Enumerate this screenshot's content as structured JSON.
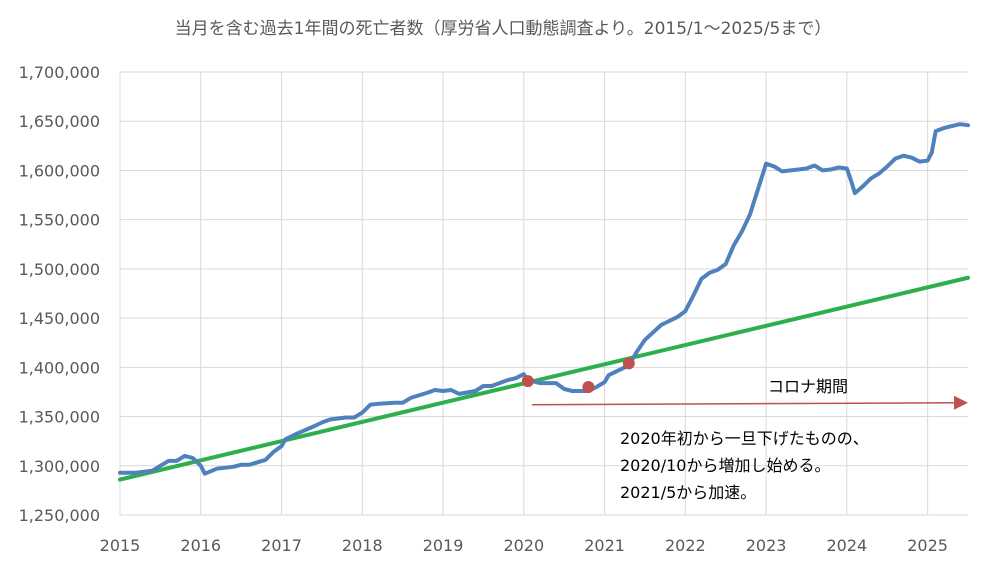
{
  "chart_data": {
    "type": "line",
    "title": "当月を含む過去1年間の死亡者数（厚労省人口動態調査より。2015/1〜2025/5まで）",
    "xlabel": "",
    "ylabel": "",
    "x_range": [
      2015.0,
      2025.5
    ],
    "ylim": [
      1250000,
      1700000
    ],
    "yticks": [
      1250000,
      1300000,
      1350000,
      1400000,
      1450000,
      1500000,
      1550000,
      1600000,
      1650000,
      1700000
    ],
    "y_tick_labels": [
      "1,250,000",
      "1,300,000",
      "1,350,000",
      "1,400,000",
      "1,450,000",
      "1,500,000",
      "1,550,000",
      "1,600,000",
      "1,650,000",
      "1,700,000"
    ],
    "x_tick_labels": [
      "2015",
      "2016",
      "2017",
      "2018",
      "2019",
      "2020",
      "2021",
      "2022",
      "2023",
      "2024",
      "2025"
    ],
    "grid": true,
    "legend": "none",
    "colors": {
      "series": "#4f81bd",
      "trend": "#2db04b",
      "marker": "#c0504d",
      "arrow": "#c0504d"
    },
    "series": [
      {
        "values": [
          [
            2015.0,
            1293000
          ],
          [
            2015.2,
            1293000
          ],
          [
            2015.4,
            1295000
          ],
          [
            2015.5,
            1300000
          ],
          [
            2015.6,
            1305000
          ],
          [
            2015.7,
            1305000
          ],
          [
            2015.8,
            1310000
          ],
          [
            2015.9,
            1308000
          ],
          [
            2016.0,
            1300000
          ],
          [
            2016.05,
            1292000
          ],
          [
            2016.2,
            1297000
          ],
          [
            2016.4,
            1299000
          ],
          [
            2016.5,
            1301000
          ],
          [
            2016.6,
            1301000
          ],
          [
            2016.8,
            1306000
          ],
          [
            2016.9,
            1314000
          ],
          [
            2017.0,
            1320000
          ],
          [
            2017.05,
            1327000
          ],
          [
            2017.2,
            1333000
          ],
          [
            2017.4,
            1340000
          ],
          [
            2017.5,
            1344000
          ],
          [
            2017.6,
            1347000
          ],
          [
            2017.8,
            1349000
          ],
          [
            2017.9,
            1349000
          ],
          [
            2018.0,
            1354000
          ],
          [
            2018.1,
            1362000
          ],
          [
            2018.2,
            1363000
          ],
          [
            2018.4,
            1364000
          ],
          [
            2018.5,
            1364000
          ],
          [
            2018.6,
            1369000
          ],
          [
            2018.8,
            1374000
          ],
          [
            2018.9,
            1377000
          ],
          [
            2019.0,
            1376000
          ],
          [
            2019.1,
            1377000
          ],
          [
            2019.2,
            1373000
          ],
          [
            2019.4,
            1376000
          ],
          [
            2019.5,
            1381000
          ],
          [
            2019.6,
            1381000
          ],
          [
            2019.8,
            1387000
          ],
          [
            2019.9,
            1389000
          ],
          [
            2020.0,
            1393000
          ],
          [
            2020.05,
            1387000
          ],
          [
            2020.2,
            1384000
          ],
          [
            2020.4,
            1384000
          ],
          [
            2020.5,
            1378000
          ],
          [
            2020.6,
            1376000
          ],
          [
            2020.8,
            1376000
          ],
          [
            2020.9,
            1380000
          ],
          [
            2021.0,
            1385000
          ],
          [
            2021.05,
            1392000
          ],
          [
            2021.2,
            1398000
          ],
          [
            2021.3,
            1402000
          ],
          [
            2021.4,
            1416000
          ],
          [
            2021.5,
            1428000
          ],
          [
            2021.7,
            1443000
          ],
          [
            2021.9,
            1451000
          ],
          [
            2022.0,
            1457000
          ],
          [
            2022.1,
            1473000
          ],
          [
            2022.2,
            1490000
          ],
          [
            2022.3,
            1496000
          ],
          [
            2022.4,
            1499000
          ],
          [
            2022.5,
            1505000
          ],
          [
            2022.6,
            1524000
          ],
          [
            2022.7,
            1538000
          ],
          [
            2022.8,
            1555000
          ],
          [
            2022.9,
            1581000
          ],
          [
            2023.0,
            1607000
          ],
          [
            2023.1,
            1604000
          ],
          [
            2023.2,
            1599000
          ],
          [
            2023.4,
            1601000
          ],
          [
            2023.5,
            1602000
          ],
          [
            2023.6,
            1605000
          ],
          [
            2023.7,
            1600000
          ],
          [
            2023.8,
            1601000
          ],
          [
            2023.9,
            1603000
          ],
          [
            2024.0,
            1602000
          ],
          [
            2024.05,
            1590000
          ],
          [
            2024.1,
            1577000
          ],
          [
            2024.2,
            1584000
          ],
          [
            2024.3,
            1592000
          ],
          [
            2024.4,
            1597000
          ],
          [
            2024.5,
            1604000
          ],
          [
            2024.6,
            1612000
          ],
          [
            2024.7,
            1615000
          ],
          [
            2024.8,
            1613000
          ],
          [
            2024.9,
            1609000
          ],
          [
            2025.0,
            1610000
          ],
          [
            2025.05,
            1618000
          ],
          [
            2025.1,
            1640000
          ],
          [
            2025.2,
            1643000
          ],
          [
            2025.3,
            1645000
          ],
          [
            2025.4,
            1647000
          ],
          [
            2025.5,
            1646000
          ]
        ]
      },
      {
        "values": [
          [
            2015.0,
            1286000
          ],
          [
            2025.5,
            1491000
          ]
        ]
      }
    ],
    "markers": [
      [
        2020.05,
        1386000
      ],
      [
        2020.8,
        1380000
      ],
      [
        2021.3,
        1404000
      ]
    ],
    "arrow": {
      "from": [
        2020.1,
        1362000
      ],
      "to": [
        2025.5,
        1364000
      ]
    },
    "annotations": {
      "period_label": "コロナ期間",
      "note_lines": [
        "2020年初から一旦下げたものの、",
        "2020/10から増加し始める。",
        "2021/5から加速。"
      ]
    }
  }
}
